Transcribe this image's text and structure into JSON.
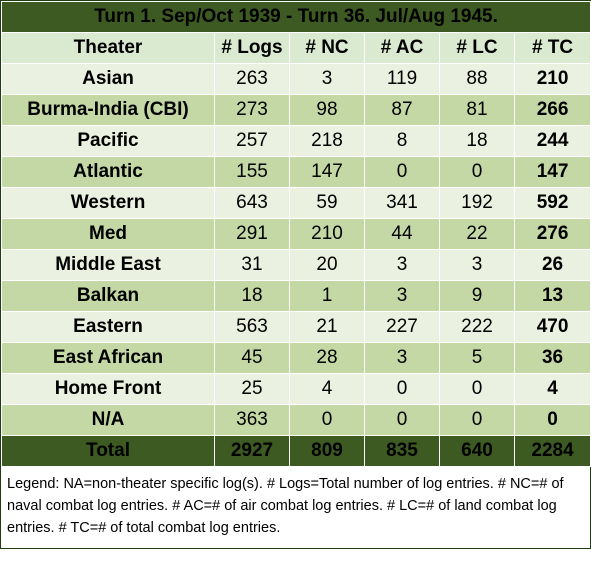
{
  "title": "Turn 1.  Sep/Oct 1939 - Turn 36.  Jul/Aug 1945.",
  "headers": [
    "Theater",
    "# Logs",
    "# NC",
    "# AC",
    "# LC",
    "# TC"
  ],
  "rows": [
    {
      "theater": "Asian",
      "logs": "263",
      "nc": "3",
      "ac": "119",
      "lc": "88",
      "tc": "210"
    },
    {
      "theater": "Burma-India (CBI)",
      "logs": "273",
      "nc": "98",
      "ac": "87",
      "lc": "81",
      "tc": "266"
    },
    {
      "theater": "Pacific",
      "logs": "257",
      "nc": "218",
      "ac": "8",
      "lc": "18",
      "tc": "244"
    },
    {
      "theater": "Atlantic",
      "logs": "155",
      "nc": "147",
      "ac": "0",
      "lc": "0",
      "tc": "147"
    },
    {
      "theater": "Western",
      "logs": "643",
      "nc": "59",
      "ac": "341",
      "lc": "192",
      "tc": "592"
    },
    {
      "theater": "Med",
      "logs": "291",
      "nc": "210",
      "ac": "44",
      "lc": "22",
      "tc": "276"
    },
    {
      "theater": "Middle East",
      "logs": "31",
      "nc": "20",
      "ac": "3",
      "lc": "3",
      "tc": "26"
    },
    {
      "theater": "Balkan",
      "logs": "18",
      "nc": "1",
      "ac": "3",
      "lc": "9",
      "tc": "13"
    },
    {
      "theater": "Eastern",
      "logs": "563",
      "nc": "21",
      "ac": "227",
      "lc": "222",
      "tc": "470"
    },
    {
      "theater": "East African",
      "logs": "45",
      "nc": "28",
      "ac": "3",
      "lc": "5",
      "tc": "36"
    },
    {
      "theater": "Home Front",
      "logs": "25",
      "nc": "4",
      "ac": "0",
      "lc": "0",
      "tc": "4"
    },
    {
      "theater": "N/A",
      "logs": "363",
      "nc": "0",
      "ac": "0",
      "lc": "0",
      "tc": "0"
    }
  ],
  "total": {
    "theater": "Total",
    "logs": "2927",
    "nc": "809",
    "ac": "835",
    "lc": "640",
    "tc": "2284"
  },
  "legend": "Legend:  NA=non-theater specific log(s).  # Logs=Total number of log entries.  # NC=# of naval combat log entries.  # AC=# of air combat log entries.  # LC=# of land combat log entries.  # TC=# of total combat log entries.",
  "colors": {
    "header_dark_green": "#3c5a21",
    "row_light": "#ebf1e0",
    "row_dark": "#c3d8a5",
    "column_header": "#d9ead0"
  }
}
